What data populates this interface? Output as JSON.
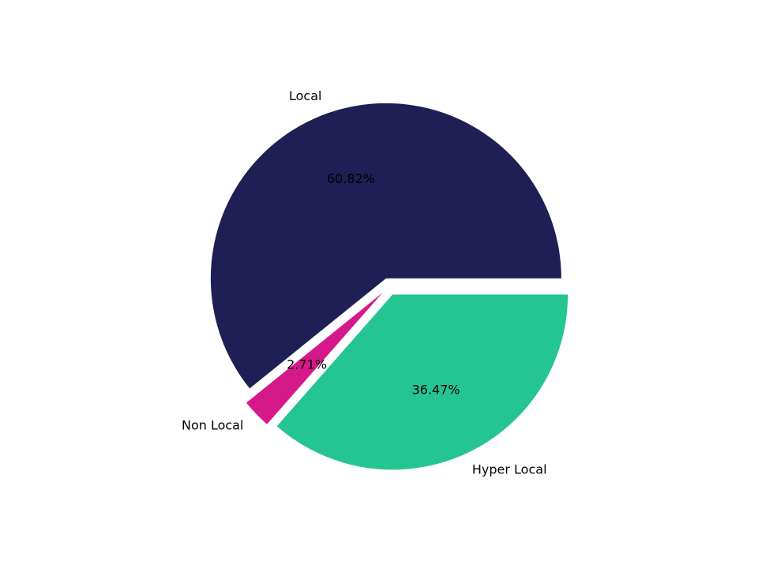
{
  "chart_data": {
    "type": "pie",
    "categories": [
      "Local",
      "Non Local",
      "Hyper Local"
    ],
    "values": [
      60.82,
      2.71,
      36.47
    ],
    "value_labels": [
      "60.82%",
      "2.71%",
      "36.47%"
    ],
    "colors": [
      "#1f1f55",
      "#d6198a",
      "#25c493"
    ],
    "explode": [
      0.05,
      0.05,
      0.05
    ],
    "start_angle": 0
  }
}
